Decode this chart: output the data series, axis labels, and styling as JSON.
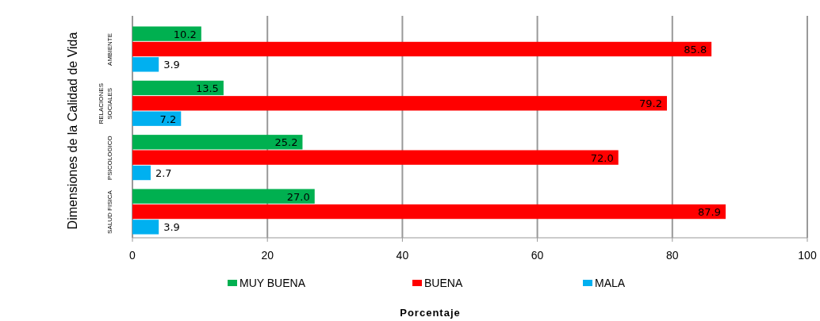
{
  "chart_data": {
    "type": "bar",
    "orientation": "horizontal",
    "xlabel": "Porcentaje",
    "ylabel": "Dimensiones  de la Calidad de Vida",
    "categories": [
      "AMBIENTE",
      "RELACIONES SOCIALES",
      "PSICOLOGICO",
      "SALUD FISICA"
    ],
    "series": [
      {
        "name": "MUY BUENA",
        "color": "#00b050",
        "values": [
          10.2,
          13.5,
          25.2,
          27.0
        ],
        "value_labels": [
          "10.2",
          "13.5",
          "25.2",
          "27.0"
        ]
      },
      {
        "name": "BUENA",
        "color": "#ff0000",
        "values": [
          85.8,
          79.2,
          72.0,
          87.9
        ],
        "value_labels": [
          "85.8",
          "79.2",
          "72.0",
          "87.9"
        ]
      },
      {
        "name": "MALA",
        "color": "#00b0f0",
        "values": [
          3.9,
          7.2,
          2.7,
          3.9
        ],
        "value_labels": [
          "3.9",
          "7.2",
          "2.7",
          "3.9"
        ]
      }
    ],
    "xlim": [
      0,
      100
    ],
    "xticks": [
      0,
      20,
      40,
      60,
      80,
      100
    ],
    "grid": "x",
    "legend": "bottom"
  }
}
